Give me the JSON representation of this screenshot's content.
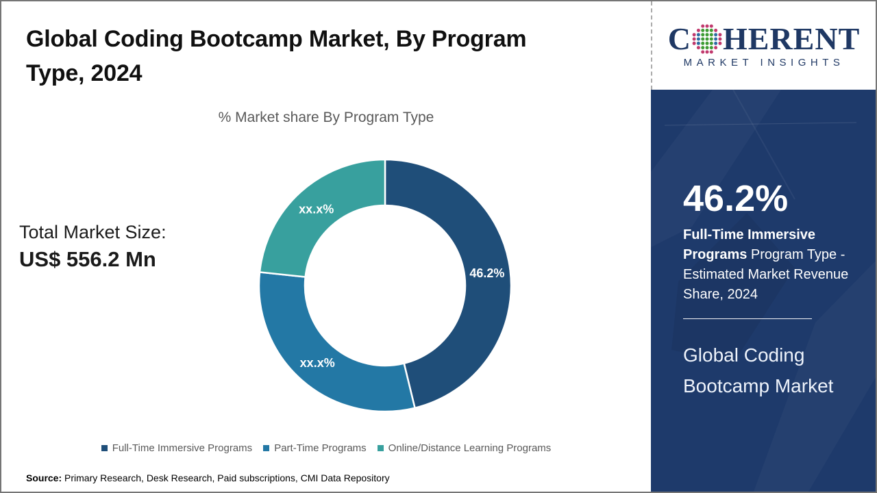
{
  "page": {
    "title": "Global Coding Bootcamp Market, By Program Type, 2024"
  },
  "chart": {
    "subtitle": "% Market share By Program Type"
  },
  "total_market": {
    "label": "Total Market Size:",
    "value": "US$ 556.2 Mn"
  },
  "chart_data": {
    "type": "pie",
    "donut": true,
    "title": "% Market share By Program Type",
    "categories": [
      "Full-Time Immersive Programs",
      "Part-Time Programs",
      "Online/Distance Learning Programs"
    ],
    "values": [
      46.2,
      30.5,
      23.3
    ],
    "slice_labels": [
      "46.2%",
      "xx.x%",
      "xx.x%"
    ],
    "colors": [
      "#1F4E79",
      "#2378A5",
      "#38A09E"
    ],
    "start_angle_deg": 0,
    "direction": "clockwise",
    "legend_position": "bottom"
  },
  "legend": {
    "items": [
      {
        "label": "Full-Time Immersive Programs",
        "color": "#1F4E79"
      },
      {
        "label": "Part-Time Programs",
        "color": "#2378A5"
      },
      {
        "label": "Online/Distance Learning Programs",
        "color": "#38A09E"
      }
    ]
  },
  "source": {
    "label": "Source:",
    "text": "Primary Research, Desk Research, Paid subscriptions, CMI Data Repository"
  },
  "logo": {
    "word_start": "C",
    "word_end": "HERENT",
    "subtitle": "MARKET INSIGHTS",
    "navy": "#1F3864",
    "globe_colors": {
      "center": "#3f9c35",
      "mid": "#2d6ca2",
      "outer": "#c13a6e"
    }
  },
  "sidebar": {
    "stat_value": "46.2%",
    "stat_bold": "Full-Time Immersive Programs",
    "stat_rest": " Program Type - Estimated Market Revenue Share, 2024",
    "panel_title": "Global Coding Bootcamp Market",
    "background": "#1E3A6B"
  }
}
